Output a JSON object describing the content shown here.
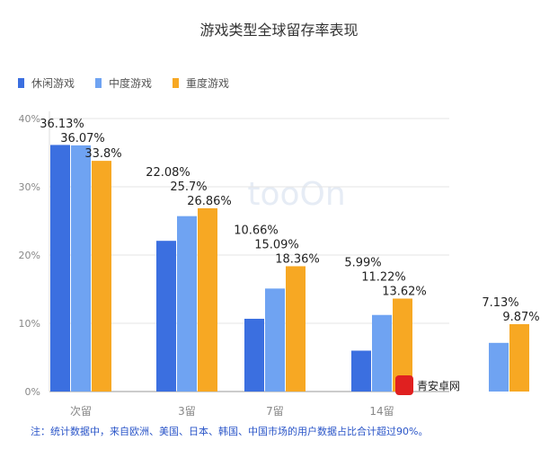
{
  "chart_data": {
    "type": "bar",
    "title": "游戏类型全球留存率表现",
    "categories": [
      "次留",
      "3留",
      "7留",
      "14留",
      ""
    ],
    "series": [
      {
        "name": "休闲游戏",
        "color": "#3b6fe0",
        "values": [
          36.13,
          22.08,
          10.66,
          5.99,
          null
        ]
      },
      {
        "name": "中度游戏",
        "color": "#6fa3f2",
        "values": [
          36.07,
          25.7,
          15.09,
          11.22,
          7.13
        ]
      },
      {
        "name": "重度游戏",
        "color": "#f7a823",
        "values": [
          33.8,
          26.86,
          18.36,
          13.62,
          9.87
        ]
      }
    ],
    "data_labels": [
      [
        "36.13%",
        "22.08%",
        "10.66%",
        "5.99%",
        ""
      ],
      [
        "36.07%",
        "25.7%",
        "15.09%",
        "11.22%",
        "7.13%"
      ],
      [
        "33.8%",
        "26.86%",
        "18.36%",
        "13.62%",
        "9.87%"
      ]
    ],
    "yticks": [
      "0%",
      "10%",
      "20%",
      "30%",
      "40%"
    ],
    "ylim": [
      0,
      40
    ],
    "grid": true,
    "legend": "top-left",
    "note": "注：统计数据中，来自欧洲、美国、日本、韩国、中国市场的用户数据占比合计超过90%。"
  },
  "watermark": {
    "center": "tooOn",
    "corner": "青安卓网"
  }
}
